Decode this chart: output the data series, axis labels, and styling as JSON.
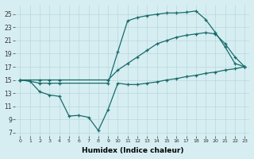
{
  "xlabel": "Humidex (Indice chaleur)",
  "background_color": "#d6eef2",
  "grid_color": "#b8d8dc",
  "line_color": "#1a6b6b",
  "xlim": [
    -0.5,
    23.5
  ],
  "ylim": [
    6.5,
    26.5
  ],
  "xticks": [
    0,
    1,
    2,
    3,
    4,
    5,
    6,
    7,
    8,
    9,
    10,
    11,
    12,
    13,
    14,
    15,
    16,
    17,
    18,
    19,
    20,
    21,
    22,
    23
  ],
  "yticks": [
    7,
    9,
    11,
    13,
    15,
    17,
    19,
    21,
    23,
    25
  ],
  "line1_x": [
    0,
    1,
    2,
    3,
    4,
    5,
    6,
    7,
    8,
    9,
    10,
    11,
    12,
    13,
    14,
    15,
    16,
    17,
    18,
    19,
    20,
    21,
    22,
    23
  ],
  "line1_y": [
    15,
    14.8,
    13.2,
    12.7,
    12.5,
    9.5,
    9.6,
    9.3,
    7.3,
    10.5,
    14.5,
    14.3,
    14.3,
    14.5,
    14.7,
    15.0,
    15.2,
    15.5,
    15.7,
    16.0,
    16.2,
    16.5,
    16.7,
    17.0
  ],
  "line2_x": [
    0,
    2,
    3,
    4,
    9,
    10,
    11,
    12,
    13,
    14,
    15,
    16,
    17,
    18,
    19,
    20,
    21,
    22,
    23
  ],
  "line2_y": [
    15,
    15,
    15,
    15,
    15,
    16.5,
    17.5,
    18.5,
    19.5,
    20.5,
    21.0,
    21.5,
    21.8,
    22.0,
    22.2,
    22.0,
    20.5,
    18.5,
    17.0
  ],
  "line3_x": [
    0,
    1,
    2,
    3,
    4,
    9,
    10,
    11,
    12,
    13,
    14,
    15,
    16,
    17,
    18,
    19,
    20,
    21,
    22,
    23
  ],
  "line3_y": [
    15,
    14.8,
    14.5,
    14.5,
    14.5,
    14.5,
    19.3,
    24.0,
    24.5,
    24.8,
    25.0,
    25.2,
    25.2,
    25.3,
    25.5,
    24.2,
    22.2,
    20.0,
    17.5,
    17.0
  ]
}
